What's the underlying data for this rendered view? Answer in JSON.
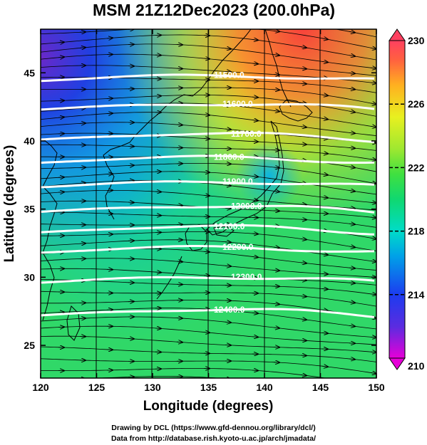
{
  "title": "MSM 21Z12Dec2023 (200.0hPa)",
  "xlabel": "Longitude (degrees)",
  "ylabel": "Latitude  (degrees)",
  "xticks": [
    "120",
    "125",
    "130",
    "135",
    "140",
    "145",
    "150"
  ],
  "yticks": [
    "25",
    "30",
    "35",
    "40",
    "45"
  ],
  "colorbar": {
    "ticks": [
      "210",
      "214",
      "218",
      "222",
      "226",
      "230"
    ],
    "colors": [
      "#e600d8",
      "#5a2ce0",
      "#1c3cf0",
      "#00a0e8",
      "#00dcc8",
      "#10d870",
      "#40e040",
      "#a0e830",
      "#e8f020",
      "#ffb020",
      "#ff6040",
      "#ff4060"
    ]
  },
  "contours": [
    {
      "label": "11500.0",
      "lat": 44.4
    },
    {
      "label": "11600.0",
      "lat": 42.3
    },
    {
      "label": "11700.0",
      "lat": 40.1
    },
    {
      "label": "11800.0",
      "lat": 38.4
    },
    {
      "label": "11900.0",
      "lat": 36.6
    },
    {
      "label": "12000.0",
      "lat": 34.8
    },
    {
      "label": "12100.0",
      "lat": 33.3
    },
    {
      "label": "12200.0",
      "lat": 31.8
    },
    {
      "label": "12300.0",
      "lat": 29.6
    },
    {
      "label": "12400.0",
      "lat": 27.2
    }
  ],
  "credits": {
    "line1": "Drawing by DCL (https://www.gfd-dennou.org/library/dcl/)",
    "line2": "Data from http://database.rish.kyoto-u.ac.jp/arch/jmadata/"
  }
}
